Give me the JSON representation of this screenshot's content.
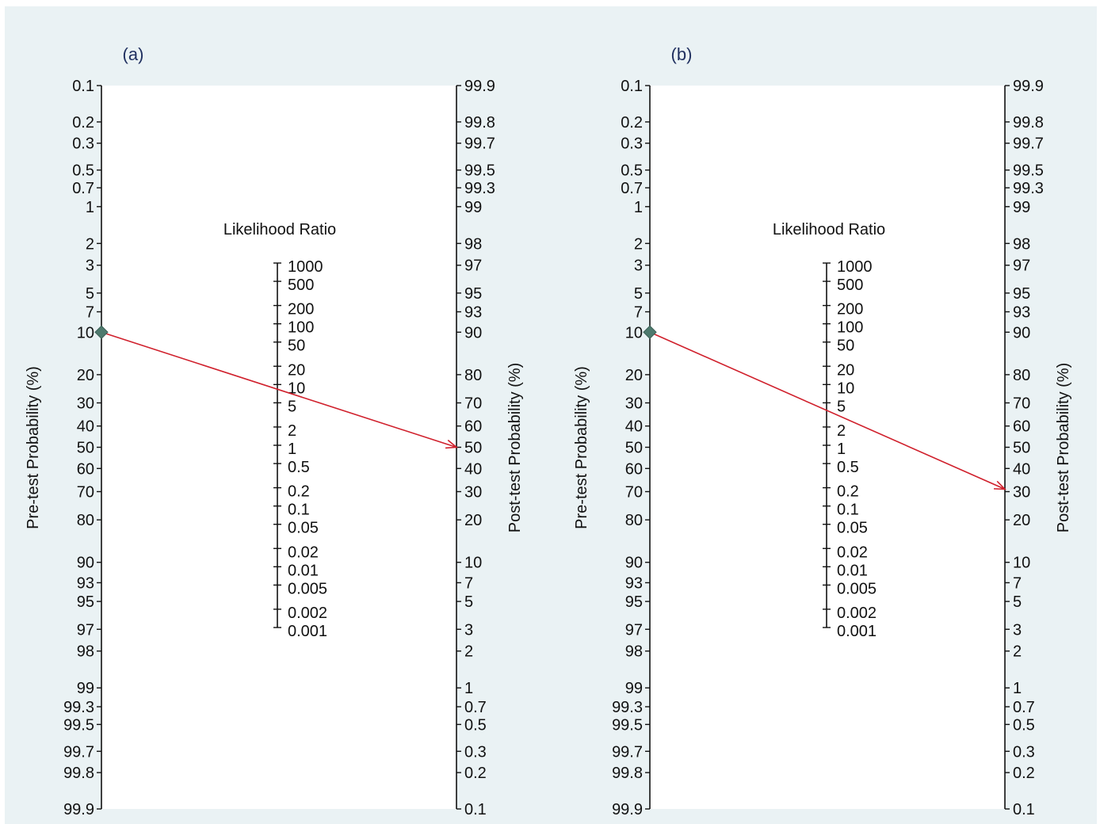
{
  "colors": {
    "background": "#eaf2f4",
    "plot_area": "#ffffff",
    "axis": "#111111",
    "arrow": "#d0202c",
    "marker": "#4e7a6e",
    "panel_label": "#1f2f5f"
  },
  "chart_data": [
    {
      "type": "nomogram",
      "panel_label": "(a)",
      "left_axis": {
        "title": "Pre-test Probability (%)",
        "ticks": [
          "0.1",
          "0.2",
          "0.3",
          "0.5",
          "0.7",
          "1",
          "2",
          "3",
          "5",
          "7",
          "10",
          "20",
          "30",
          "40",
          "50",
          "60",
          "70",
          "80",
          "90",
          "93",
          "95",
          "97",
          "98",
          "99",
          "99.3",
          "99.5",
          "99.7",
          "99.8",
          "99.9"
        ]
      },
      "middle_axis": {
        "title": "Likelihood Ratio",
        "ticks": [
          "1000",
          "500",
          "200",
          "100",
          "50",
          "20",
          "10",
          "5",
          "2",
          "1",
          "0.5",
          "0.2",
          "0.1",
          "0.05",
          "0.02",
          "0.01",
          "0.005",
          "0.002",
          "0.001"
        ]
      },
      "right_axis": {
        "title": "Post-test Probability (%)",
        "ticks": [
          "99.9",
          "99.8",
          "99.7",
          "99.5",
          "99.3",
          "99",
          "98",
          "97",
          "95",
          "93",
          "90",
          "80",
          "70",
          "60",
          "50",
          "40",
          "30",
          "20",
          "10",
          "7",
          "5",
          "3",
          "2",
          "1",
          "0.7",
          "0.5",
          "0.3",
          "0.2",
          "0.1"
        ]
      },
      "pre_test_probability": 10,
      "post_test_probability": 50
    },
    {
      "type": "nomogram",
      "panel_label": "(b)",
      "left_axis": {
        "title": "Pre-test Probability (%)",
        "ticks": [
          "0.1",
          "0.2",
          "0.3",
          "0.5",
          "0.7",
          "1",
          "2",
          "3",
          "5",
          "7",
          "10",
          "20",
          "30",
          "40",
          "50",
          "60",
          "70",
          "80",
          "90",
          "93",
          "95",
          "97",
          "98",
          "99",
          "99.3",
          "99.5",
          "99.7",
          "99.8",
          "99.9"
        ]
      },
      "middle_axis": {
        "title": "Likelihood Ratio",
        "ticks": [
          "1000",
          "500",
          "200",
          "100",
          "50",
          "20",
          "10",
          "5",
          "2",
          "1",
          "0.5",
          "0.2",
          "0.1",
          "0.05",
          "0.02",
          "0.01",
          "0.005",
          "0.002",
          "0.001"
        ]
      },
      "right_axis": {
        "title": "Post-test Probability (%)",
        "ticks": [
          "99.9",
          "99.8",
          "99.7",
          "99.5",
          "99.3",
          "99",
          "98",
          "97",
          "95",
          "93",
          "90",
          "80",
          "70",
          "60",
          "50",
          "40",
          "30",
          "20",
          "10",
          "7",
          "5",
          "3",
          "2",
          "1",
          "0.7",
          "0.5",
          "0.3",
          "0.2",
          "0.1"
        ]
      },
      "pre_test_probability": 10,
      "post_test_probability": 31
    }
  ]
}
